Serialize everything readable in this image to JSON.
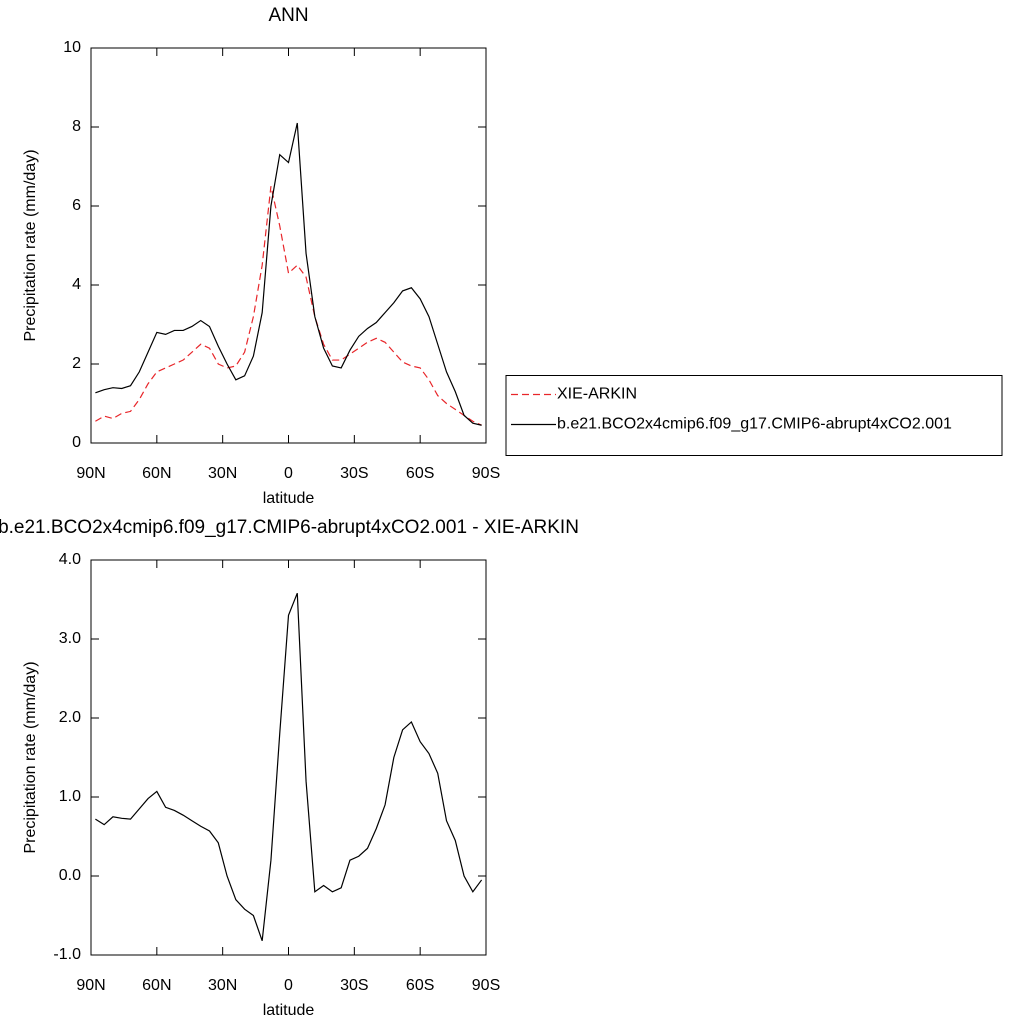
{
  "chart_data": [
    {
      "type": "line",
      "title": "ANN",
      "xlabel": "latitude",
      "ylabel": "Precipitation rate (mm/day)",
      "x": [
        88,
        84,
        80,
        76,
        72,
        68,
        64,
        60,
        56,
        52,
        48,
        44,
        40,
        36,
        32,
        28,
        24,
        20,
        16,
        12,
        8,
        4,
        0,
        -4,
        -8,
        -12,
        -16,
        -20,
        -24,
        -28,
        -32,
        -36,
        -40,
        -44,
        -48,
        -52,
        -56,
        -60,
        -64,
        -68,
        -72,
        -76,
        -80,
        -84,
        -88
      ],
      "series": [
        {
          "name": "XIE-ARKIN",
          "color": "#e8262a",
          "line_style": "dashed",
          "values": [
            0.55,
            0.68,
            0.62,
            0.75,
            0.8,
            1.1,
            1.5,
            1.8,
            1.9,
            2.0,
            2.1,
            2.3,
            2.5,
            2.4,
            2.0,
            1.9,
            1.95,
            2.3,
            3.2,
            4.5,
            6.5,
            5.5,
            4.3,
            4.5,
            4.2,
            3.2,
            2.5,
            2.1,
            2.1,
            2.25,
            2.4,
            2.55,
            2.65,
            2.55,
            2.3,
            2.05,
            1.95,
            1.9,
            1.6,
            1.2,
            1.0,
            0.85,
            0.7,
            0.55,
            0.45
          ]
        },
        {
          "name": "b.e21.BCO2x4cmip6.f09_g17.CMIP6-abrupt4xCO2.001",
          "color": "#000000",
          "line_style": "solid",
          "values": [
            1.27,
            1.35,
            1.4,
            1.38,
            1.45,
            1.8,
            2.3,
            2.8,
            2.75,
            2.85,
            2.85,
            2.95,
            3.1,
            2.95,
            2.45,
            2.0,
            1.6,
            1.7,
            2.2,
            3.3,
            6.0,
            7.3,
            7.1,
            8.1,
            4.8,
            3.2,
            2.4,
            1.95,
            1.9,
            2.35,
            2.7,
            2.9,
            3.05,
            3.3,
            3.55,
            3.85,
            3.93,
            3.65,
            3.2,
            2.5,
            1.8,
            1.3,
            0.7,
            0.5,
            0.45
          ]
        }
      ],
      "xlim": [
        90,
        -90
      ],
      "xticks": [
        {
          "value": 90,
          "label": "90N"
        },
        {
          "value": 60,
          "label": "60N"
        },
        {
          "value": 30,
          "label": "30N"
        },
        0,
        {
          "value": -30,
          "label": "30S"
        },
        {
          "value": -60,
          "label": "60S"
        },
        {
          "value": -90,
          "label": "90S"
        }
      ],
      "ylim": [
        0,
        10
      ],
      "yticks": [
        0,
        2,
        4,
        6,
        8,
        10
      ],
      "legend": "right"
    },
    {
      "type": "line",
      "title": "b.e21.BCO2x4cmip6.f09_g17.CMIP6-abrupt4xCO2.001 - XIE-ARKIN",
      "xlabel": "latitude",
      "ylabel": "Precipitation rate (mm/day)",
      "x": [
        88,
        84,
        80,
        76,
        72,
        68,
        64,
        60,
        56,
        52,
        48,
        44,
        40,
        36,
        32,
        28,
        24,
        20,
        16,
        12,
        8,
        4,
        0,
        -4,
        -8,
        -12,
        -16,
        -20,
        -24,
        -28,
        -32,
        -36,
        -40,
        -44,
        -48,
        -52,
        -56,
        -60,
        -64,
        -68,
        -72,
        -76,
        -80,
        -84,
        -88
      ],
      "series": [
        {
          "color": "#000000",
          "line_style": "solid",
          "values": [
            0.72,
            0.65,
            0.75,
            0.73,
            0.72,
            0.85,
            0.98,
            1.07,
            0.87,
            0.83,
            0.77,
            0.7,
            0.63,
            0.57,
            0.42,
            0.0,
            -0.3,
            -0.42,
            -0.5,
            -0.82,
            0.2,
            1.8,
            3.3,
            3.58,
            1.2,
            -0.2,
            -0.12,
            -0.2,
            -0.15,
            0.2,
            0.25,
            0.35,
            0.6,
            0.9,
            1.5,
            1.85,
            1.95,
            1.7,
            1.55,
            1.3,
            0.7,
            0.45,
            0.0,
            -0.2,
            -0.05
          ]
        }
      ],
      "xlim": [
        90,
        -90
      ],
      "xticks": [
        {
          "value": 90,
          "label": "90N"
        },
        {
          "value": 60,
          "label": "60N"
        },
        {
          "value": 30,
          "label": "30N"
        },
        0,
        {
          "value": -30,
          "label": "30S"
        },
        {
          "value": -60,
          "label": "60S"
        },
        {
          "value": -90,
          "label": "90S"
        }
      ],
      "ylim": [
        -1,
        4
      ],
      "yticks": [
        {
          "value": -1,
          "label": "-1.0"
        },
        {
          "value": 0,
          "label": "0.0"
        },
        {
          "value": 1,
          "label": "1.0"
        },
        {
          "value": 2,
          "label": "2.0"
        },
        {
          "value": 3,
          "label": "3.0"
        },
        {
          "value": 4,
          "label": "4.0"
        }
      ]
    }
  ]
}
